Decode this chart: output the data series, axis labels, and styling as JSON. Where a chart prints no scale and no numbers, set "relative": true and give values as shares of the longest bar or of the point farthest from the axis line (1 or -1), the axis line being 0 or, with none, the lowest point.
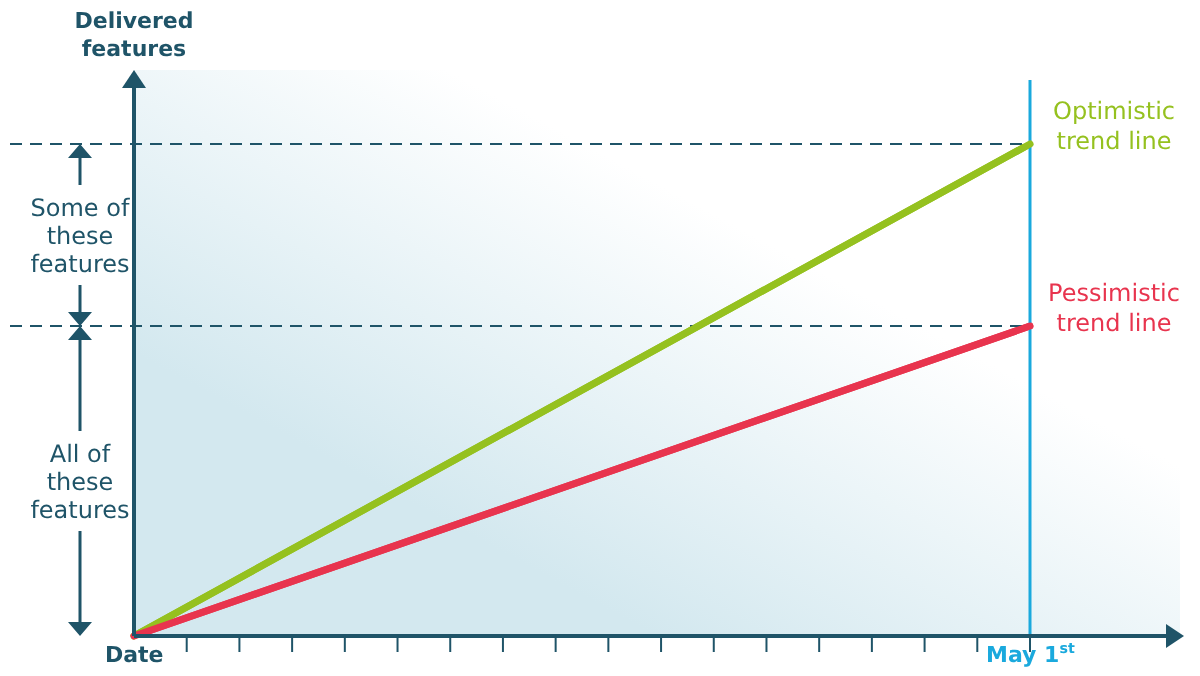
{
  "chart_data": {
    "type": "line",
    "relative": true,
    "ylabel": "Delivered features",
    "marker": "none",
    "categories": [
      "Date",
      null,
      null,
      null,
      null,
      null,
      null,
      null,
      null,
      null,
      null,
      null,
      null,
      null,
      null,
      null,
      null,
      "May 1$^{st}$"
    ],
    "series": [
      {
        "name": "Optimistic trend line",
        "color": "#95c11f",
        "x": [
          "Date",
          "May 1$^{st}$"
        ],
        "values": [
          0,
          1
        ]
      },
      {
        "name": "Pessimistic trend line",
        "color": "#e8344e",
        "x": [
          "Date",
          "May 1$^{st}$"
        ],
        "values": [
          0,
          0.63
        ]
      }
    ],
    "ref_lines": [
      {
        "axis": "y",
        "value": 1,
        "color": "#1f5468",
        "line_style": "dashed"
      },
      {
        "axis": "y",
        "value": 0.63,
        "color": "#1f5468",
        "line_style": "dashed"
      },
      {
        "axis": "x",
        "value": "May 1$^{st}$",
        "color": "#1aa9dd",
        "line_style": "solid"
      }
    ],
    "annotations": [
      "Some of these features",
      "All of these features"
    ],
    "legend": false
  }
}
